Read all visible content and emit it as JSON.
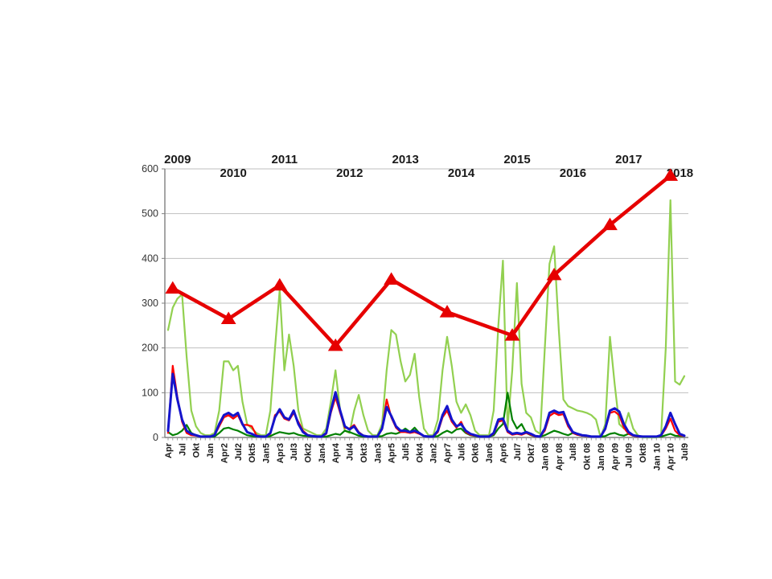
{
  "slide": {
    "background": "#ffffff"
  },
  "chart_data": {
    "type": "line",
    "title": "",
    "legend": "none",
    "grid": "horizontal",
    "ylim": [
      0,
      600
    ],
    "y_ticks": [
      0,
      100,
      200,
      300,
      400,
      500,
      600
    ],
    "axis_color": "#808080",
    "grid_color": "#bfbfbf",
    "tick_color": "#999999",
    "label_color": "#1a1a1a",
    "months_per_label": 3,
    "x_labels": [
      "Apr",
      "Jul",
      "Okt",
      "Jan",
      "Apr2",
      "Jul2",
      "Okt5",
      "Jan5",
      "Apr3",
      "Jul3",
      "Okt2",
      "Jan4",
      "Apr4",
      "Jul4",
      "Okt3",
      "Jan3",
      "Apr5",
      "Jul5",
      "Okt4",
      "Jan2",
      "Apr7",
      "Jul6",
      "Okt6",
      "Jan6",
      "Apr6",
      "Jul7",
      "Okt7",
      "Jan 08",
      "Apr 08",
      "Jul8",
      "Okt 08",
      "Jan 09",
      "Apr 09",
      "Jul 09",
      "Okt8",
      "Jan 10",
      "Apr 10",
      "Jul9"
    ],
    "year_labels": [
      {
        "text": "2009",
        "month_index": 1,
        "row": 1
      },
      {
        "text": "2010",
        "month_index": 13,
        "row": 2
      },
      {
        "text": "2011",
        "month_index": 24,
        "row": 1
      },
      {
        "text": "2012",
        "month_index": 38,
        "row": 2
      },
      {
        "text": "2013",
        "month_index": 50,
        "row": 1
      },
      {
        "text": "2014",
        "month_index": 62,
        "row": 2
      },
      {
        "text": "2015",
        "month_index": 74,
        "row": 1
      },
      {
        "text": "2016",
        "month_index": 86,
        "row": 2
      },
      {
        "text": "2017",
        "month_index": 98,
        "row": 1
      },
      {
        "text": "2018",
        "month_index": 109,
        "row": 2
      }
    ],
    "series": [
      {
        "name": "light-green-line",
        "color": "#92d050",
        "width": 2.2,
        "marker": "none",
        "monthly_values": [
          240,
          290,
          310,
          320,
          180,
          60,
          25,
          10,
          5,
          5,
          10,
          60,
          170,
          170,
          150,
          160,
          80,
          30,
          20,
          10,
          5,
          5,
          60,
          200,
          330,
          150,
          230,
          160,
          60,
          20,
          15,
          10,
          5,
          5,
          20,
          80,
          150,
          60,
          15,
          10,
          60,
          95,
          50,
          15,
          5,
          5,
          30,
          150,
          240,
          230,
          170,
          125,
          140,
          187,
          90,
          20,
          5,
          5,
          40,
          150,
          225,
          160,
          80,
          55,
          74,
          50,
          15,
          5,
          5,
          5,
          60,
          250,
          395,
          20,
          150,
          345,
          120,
          55,
          45,
          15,
          8,
          200,
          388,
          427,
          240,
          85,
          70,
          65,
          60,
          58,
          55,
          50,
          40,
          0,
          30,
          225,
          120,
          30,
          20,
          55,
          20,
          5,
          0,
          0,
          0,
          0,
          5,
          200,
          530,
          125,
          118,
          137
        ]
      },
      {
        "name": "dark-green-line",
        "color": "#008000",
        "width": 2.2,
        "marker": "none",
        "monthly_values": [
          12,
          5,
          8,
          15,
          28,
          10,
          5,
          2,
          2,
          2,
          2,
          10,
          20,
          22,
          18,
          15,
          10,
          5,
          3,
          2,
          2,
          2,
          3,
          8,
          12,
          10,
          8,
          10,
          6,
          4,
          3,
          2,
          2,
          2,
          2,
          5,
          8,
          6,
          15,
          12,
          8,
          4,
          2,
          2,
          2,
          2,
          3,
          8,
          10,
          8,
          12,
          20,
          12,
          22,
          10,
          3,
          2,
          2,
          3,
          10,
          15,
          10,
          18,
          20,
          10,
          5,
          3,
          2,
          2,
          2,
          5,
          20,
          30,
          100,
          40,
          20,
          30,
          10,
          5,
          2,
          2,
          5,
          10,
          15,
          12,
          8,
          5,
          10,
          6,
          4,
          3,
          2,
          2,
          2,
          3,
          8,
          10,
          6,
          4,
          8,
          4,
          2,
          2,
          2,
          2,
          2,
          2,
          5,
          8,
          4,
          3,
          3
        ]
      },
      {
        "name": "red-line",
        "color": "#ff0000",
        "width": 2.2,
        "marker": "none",
        "monthly_values": [
          10,
          160,
          90,
          35,
          10,
          5,
          4,
          2,
          2,
          2,
          5,
          25,
          45,
          50,
          42,
          50,
          28,
          28,
          25,
          5,
          2,
          2,
          8,
          50,
          58,
          42,
          38,
          55,
          35,
          15,
          6,
          3,
          2,
          2,
          8,
          55,
          90,
          55,
          22,
          20,
          28,
          12,
          4,
          2,
          2,
          2,
          18,
          85,
          45,
          22,
          12,
          12,
          10,
          12,
          8,
          3,
          2,
          2,
          12,
          45,
          60,
          35,
          22,
          35,
          12,
          6,
          4,
          2,
          2,
          2,
          8,
          35,
          38,
          12,
          6,
          8,
          6,
          10,
          6,
          2,
          2,
          15,
          48,
          55,
          50,
          52,
          25,
          10,
          6,
          4,
          3,
          2,
          2,
          2,
          18,
          55,
          58,
          50,
          22,
          8,
          4,
          2,
          2,
          2,
          2,
          2,
          4,
          20,
          42,
          15,
          5,
          3
        ]
      },
      {
        "name": "blue-line",
        "color": "#1414cc",
        "width": 3,
        "marker": "none",
        "monthly_values": [
          15,
          142,
          85,
          40,
          15,
          8,
          5,
          2,
          2,
          2,
          5,
          30,
          50,
          55,
          48,
          55,
          30,
          12,
          8,
          3,
          2,
          2,
          10,
          45,
          63,
          45,
          40,
          60,
          30,
          12,
          5,
          3,
          2,
          2,
          10,
          60,
          101,
          60,
          25,
          18,
          25,
          10,
          4,
          2,
          2,
          2,
          20,
          68,
          48,
          25,
          15,
          15,
          12,
          15,
          10,
          3,
          2,
          2,
          15,
          50,
          70,
          40,
          25,
          30,
          15,
          8,
          5,
          2,
          2,
          2,
          10,
          40,
          42,
          15,
          8,
          10,
          8,
          12,
          8,
          3,
          2,
          20,
          55,
          60,
          55,
          57,
          30,
          12,
          8,
          5,
          4,
          2,
          2,
          2,
          20,
          60,
          65,
          58,
          30,
          12,
          5,
          3,
          2,
          2,
          2,
          2,
          5,
          25,
          55,
          30,
          8,
          4
        ]
      },
      {
        "name": "red-triangle-annual-line",
        "color": "#e60000",
        "width": 4.5,
        "marker": "triangle",
        "x_month_index": [
          1,
          13,
          24,
          36,
          48,
          60,
          74,
          83,
          95,
          108
        ],
        "values": [
          333,
          265,
          340,
          205,
          353,
          280,
          228,
          363,
          475,
          585
        ]
      }
    ]
  }
}
